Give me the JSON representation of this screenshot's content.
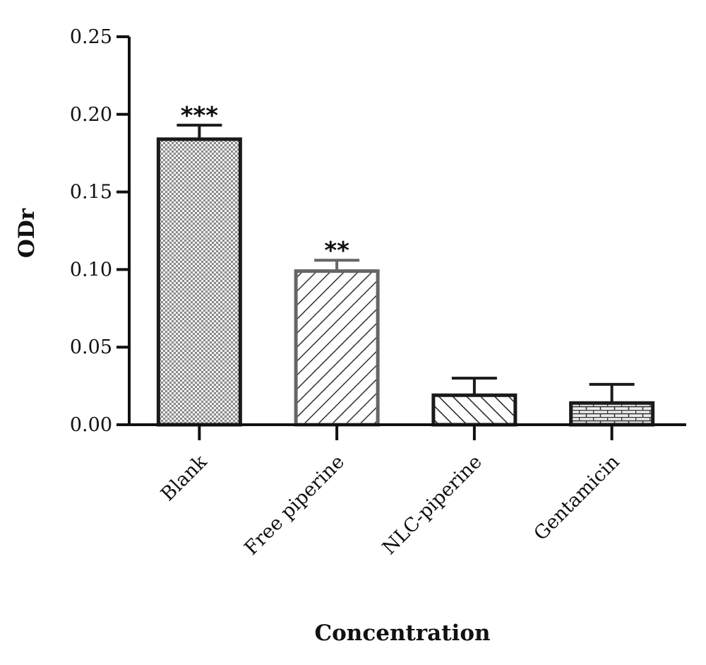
{
  "chart_data": {
    "type": "bar",
    "title": "",
    "xlabel": "Concentration",
    "ylabel": "ODr",
    "ylim": [
      0,
      0.25
    ],
    "yticks": [
      "0.00",
      "0.05",
      "0.10",
      "0.15",
      "0.20",
      "0.25"
    ],
    "grid": false,
    "legend": "none",
    "categories": [
      "Blank",
      "Free piperine",
      "NLC-piperine",
      "Gentamicin"
    ],
    "values": [
      0.184,
      0.099,
      0.019,
      0.014
    ],
    "error": [
      0.009,
      0.007,
      0.011,
      0.012
    ],
    "annotations": [
      "***",
      "**",
      "",
      ""
    ],
    "fill_patterns": [
      "checker",
      "diagonal-right",
      "diagonal-left",
      "brick"
    ],
    "outline_colors": [
      "#1a1a1a",
      "#666666",
      "#1a1a1a",
      "#1a1a1a"
    ]
  }
}
